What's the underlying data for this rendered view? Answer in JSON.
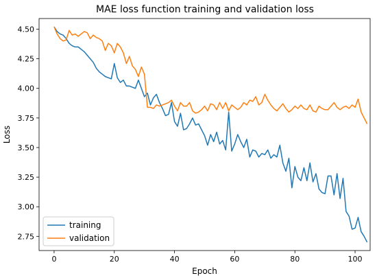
{
  "chart_data": {
    "type": "line",
    "title": "MAE loss function training and validation loss",
    "xlabel": "Epoch",
    "ylabel": "Loss",
    "xlim": [
      -5,
      105
    ],
    "ylim": [
      2.63,
      4.59
    ],
    "xticks": [
      0,
      20,
      40,
      60,
      80,
      100
    ],
    "yticks": [
      2.75,
      3.0,
      3.25,
      3.5,
      3.75,
      4.0,
      4.25,
      4.5
    ],
    "ytick_labels": [
      "2.75",
      "3.00",
      "3.25",
      "3.50",
      "3.75",
      "4.00",
      "4.25",
      "4.50"
    ],
    "grid": false,
    "legend_position": "lower-left",
    "series": [
      {
        "name": "training",
        "color": "#1f77b4",
        "values": [
          4.52,
          4.48,
          4.46,
          4.45,
          4.42,
          4.38,
          4.36,
          4.35,
          4.35,
          4.33,
          4.31,
          4.28,
          4.25,
          4.22,
          4.17,
          4.14,
          4.12,
          4.1,
          4.09,
          4.08,
          4.21,
          4.09,
          4.05,
          4.07,
          4.02,
          4.02,
          4.01,
          4.0,
          4.07,
          4.0,
          3.93,
          3.96,
          3.86,
          3.92,
          3.95,
          3.88,
          3.83,
          3.77,
          3.78,
          3.88,
          3.72,
          3.68,
          3.79,
          3.65,
          3.66,
          3.7,
          3.75,
          3.69,
          3.7,
          3.65,
          3.6,
          3.52,
          3.61,
          3.55,
          3.63,
          3.53,
          3.56,
          3.48,
          3.8,
          3.47,
          3.53,
          3.61,
          3.55,
          3.5,
          3.57,
          3.42,
          3.48,
          3.47,
          3.42,
          3.45,
          3.44,
          3.48,
          3.41,
          3.44,
          3.42,
          3.52,
          3.37,
          3.3,
          3.41,
          3.16,
          3.34,
          3.25,
          3.22,
          3.33,
          3.22,
          3.37,
          3.21,
          3.28,
          3.15,
          3.12,
          3.11,
          3.26,
          3.26,
          3.1,
          3.28,
          3.07,
          3.24,
          2.96,
          2.92,
          2.81,
          2.82,
          2.91,
          2.79,
          2.75,
          2.7
        ]
      },
      {
        "name": "validation",
        "color": "#ff7f0e",
        "values": [
          4.52,
          4.46,
          4.42,
          4.4,
          4.41,
          4.49,
          4.45,
          4.46,
          4.44,
          4.46,
          4.48,
          4.47,
          4.42,
          4.45,
          4.43,
          4.42,
          4.4,
          4.32,
          4.38,
          4.36,
          4.3,
          4.38,
          4.35,
          4.3,
          4.21,
          4.27,
          4.19,
          4.16,
          4.1,
          4.18,
          4.12,
          3.84,
          3.84,
          3.83,
          3.86,
          3.85,
          3.86,
          3.87,
          3.88,
          3.9,
          3.85,
          3.81,
          3.88,
          3.85,
          3.85,
          3.88,
          3.81,
          3.79,
          3.8,
          3.82,
          3.85,
          3.81,
          3.87,
          3.86,
          3.82,
          3.88,
          3.83,
          3.88,
          3.81,
          3.86,
          3.84,
          3.82,
          3.84,
          3.88,
          3.86,
          3.9,
          3.89,
          3.93,
          3.86,
          3.88,
          3.95,
          3.9,
          3.86,
          3.83,
          3.81,
          3.84,
          3.87,
          3.83,
          3.8,
          3.82,
          3.85,
          3.83,
          3.86,
          3.83,
          3.82,
          3.86,
          3.81,
          3.8,
          3.85,
          3.83,
          3.82,
          3.82,
          3.85,
          3.88,
          3.84,
          3.82,
          3.84,
          3.85,
          3.83,
          3.86,
          3.84,
          3.91,
          3.8,
          3.75,
          3.7
        ]
      }
    ]
  }
}
